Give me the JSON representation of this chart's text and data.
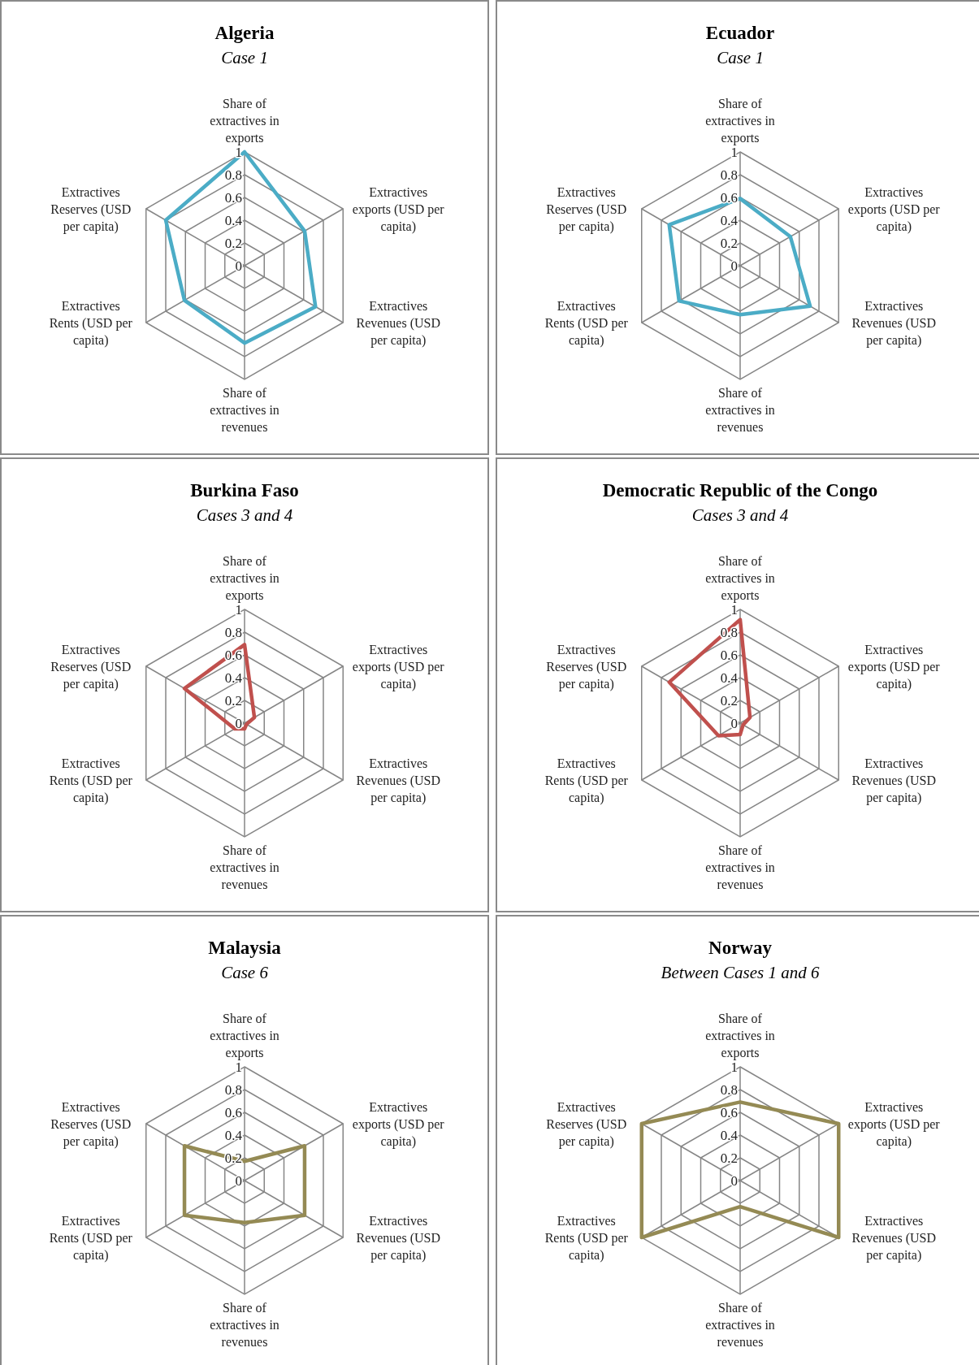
{
  "chart_data": [
    {
      "type": "radar",
      "title": "Algeria",
      "subtitle": "Case 1",
      "categories": [
        "Share of extractives in exports",
        "Extractives exports (USD per capita)",
        "Extractives Revenues (USD per capita)",
        "Share of extractives in revenues",
        "Extractives Rents (USD per capita)",
        "Extractives Reserves (USD per capita)"
      ],
      "ylim": [
        0,
        1
      ],
      "yticks": [
        0,
        0.2,
        0.4,
        0.6,
        0.8,
        1
      ],
      "grid": true,
      "series": [
        {
          "color": "#4bacc6",
          "values": [
            1,
            0.61,
            0.72,
            0.68,
            0.61,
            0.8
          ]
        }
      ]
    },
    {
      "type": "radar",
      "title": "Ecuador",
      "subtitle": "Case 1",
      "categories": [
        "Share of extractives in exports",
        "Extractives exports (USD per capita)",
        "Extractives Revenues (USD per capita)",
        "Share of extractives in revenues",
        "Extractives Rents (USD per capita)",
        "Extractives Reserves (USD per capita)"
      ],
      "ylim": [
        0,
        1
      ],
      "yticks": [
        0,
        0.2,
        0.4,
        0.6,
        0.8,
        1
      ],
      "grid": true,
      "series": [
        {
          "color": "#4bacc6",
          "values": [
            0.59,
            0.51,
            0.71,
            0.43,
            0.62,
            0.72
          ]
        }
      ]
    },
    {
      "type": "radar",
      "title": "Burkina Faso",
      "subtitle": "Cases 3 and 4",
      "categories": [
        "Share of extractives in exports",
        "Extractives exports (USD per capita)",
        "Extractives Revenues (USD per capita)",
        "Share of extractives in revenues",
        "Extractives Rents (USD per capita)",
        "Extractives Reserves (USD per capita)"
      ],
      "ylim": [
        0,
        1
      ],
      "yticks": [
        0,
        0.2,
        0.4,
        0.6,
        0.8,
        1
      ],
      "grid": true,
      "series": [
        {
          "color": "#c0504d",
          "values": [
            0.69,
            0.1,
            0.02,
            0.05,
            0.1,
            0.61
          ]
        }
      ]
    },
    {
      "type": "radar",
      "title": "Democratic Republic of the Congo",
      "subtitle": "Cases 3 and 4",
      "categories": [
        "Share of extractives in exports",
        "Extractives exports (USD per capita)",
        "Extractives Revenues (USD per capita)",
        "Share of extractives in revenues",
        "Extractives Rents (USD per capita)",
        "Extractives Reserves (USD per capita)"
      ],
      "ylim": [
        0,
        1
      ],
      "yticks": [
        0,
        0.2,
        0.4,
        0.6,
        0.8,
        1
      ],
      "grid": true,
      "series": [
        {
          "color": "#c0504d",
          "values": [
            0.91,
            0.1,
            0.03,
            0.1,
            0.22,
            0.72
          ]
        }
      ]
    },
    {
      "type": "radar",
      "title": "Malaysia",
      "subtitle": "Case 6",
      "categories": [
        "Share of extractives in exports",
        "Extractives exports (USD per capita)",
        "Extractives Revenues (USD per capita)",
        "Share of extractives in revenues",
        "Extractives Rents (USD per capita)",
        "Extractives Reserves (USD per capita)"
      ],
      "ylim": [
        0,
        1
      ],
      "yticks": [
        0,
        0.2,
        0.4,
        0.6,
        0.8,
        1
      ],
      "grid": true,
      "series": [
        {
          "color": "#948a54",
          "values": [
            0.17,
            0.61,
            0.61,
            0.37,
            0.61,
            0.61
          ]
        }
      ]
    },
    {
      "type": "radar",
      "title": "Norway",
      "subtitle": "Between Cases 1 and 6",
      "categories": [
        "Share of extractives in exports",
        "Extractives exports (USD per capita)",
        "Extractives Revenues (USD per capita)",
        "Share of extractives in revenues",
        "Extractives Rents (USD per capita)",
        "Extractives Reserves (USD per capita)"
      ],
      "ylim": [
        0,
        1
      ],
      "yticks": [
        0,
        0.2,
        0.4,
        0.6,
        0.8,
        1
      ],
      "grid": true,
      "series": [
        {
          "color": "#948a54",
          "values": [
            0.69,
            1,
            1,
            0.23,
            1,
            1
          ]
        }
      ]
    }
  ]
}
